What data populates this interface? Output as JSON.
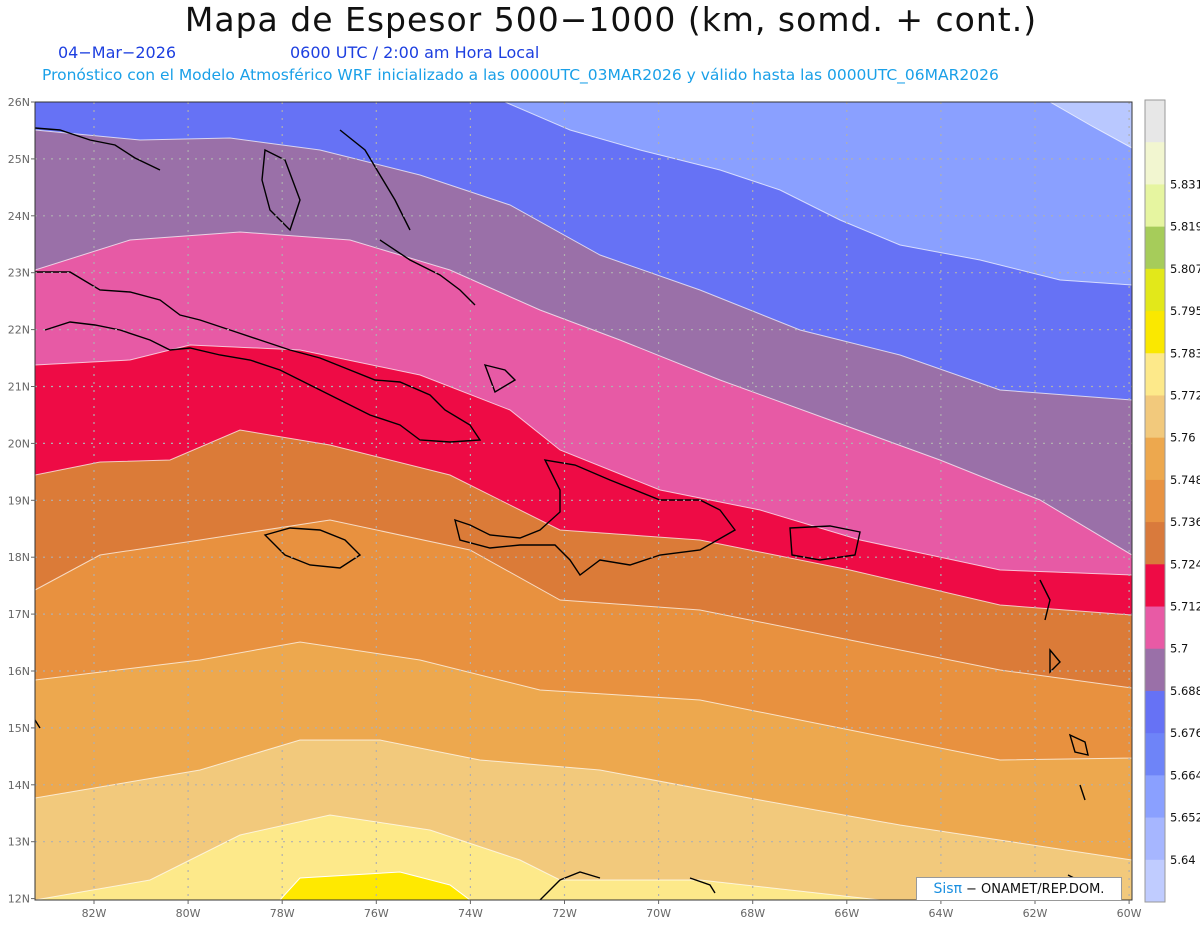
{
  "title": "Mapa de Espesor 500−1000 (km, somd. + cont.)",
  "date_label": "04−Mar−2026",
  "time_label": "0600 UTC / 2:00 am Hora Local",
  "subtitle": "Pronóstico con el Modelo Atmosférico WRF inicializado a las 0000UTC_03MAR2026 y válido hasta las  0000UTC_06MAR2026",
  "credit": {
    "logo": "Sisπ",
    "text": "− ONAMET/REP.DOM."
  },
  "lat_labels": [
    "26N",
    "25N",
    "24N",
    "23N",
    "22N",
    "21N",
    "20N",
    "19N",
    "18N",
    "17N",
    "16N",
    "15N",
    "14N",
    "13N",
    "12N"
  ],
  "lon_labels": [
    "82W",
    "80W",
    "78W",
    "76W",
    "74W",
    "72W",
    "70W",
    "68W",
    "66W",
    "64W",
    "62W",
    "60W"
  ],
  "legend": {
    "values": [
      "5.64",
      "5.652",
      "5.664",
      "5.676",
      "5.688",
      "5.7",
      "5.712",
      "5.724",
      "5.736",
      "5.748",
      "5.76",
      "5.772",
      "5.783",
      "5.795",
      "5.807",
      "5.819",
      "5.831"
    ],
    "colors": [
      "#c0ccff",
      "#a6b6ff",
      "#8aa0ff",
      "#6e84f8",
      "#6672f5",
      "#9a70a8",
      "#e85aa5",
      "#ee0b45",
      "#d97a3c",
      "#e89342",
      "#eda84e",
      "#f2c97c",
      "#fde98a",
      "#fae800",
      "#e2e81a",
      "#a6cc5a",
      "#e6f5a0",
      "#f2f6d0",
      "#e7e7e7"
    ]
  },
  "map_colors": {
    "land_outline": "#000000",
    "bands": [
      "#ffe900",
      "#fde98a",
      "#f2c97c",
      "#eda84e",
      "#e8913f",
      "#db7b38",
      "#ee0b45",
      "#e75aa5",
      "#9a70a8",
      "#6672f5",
      "#8aa0ff",
      "#b9c8ff"
    ]
  }
}
